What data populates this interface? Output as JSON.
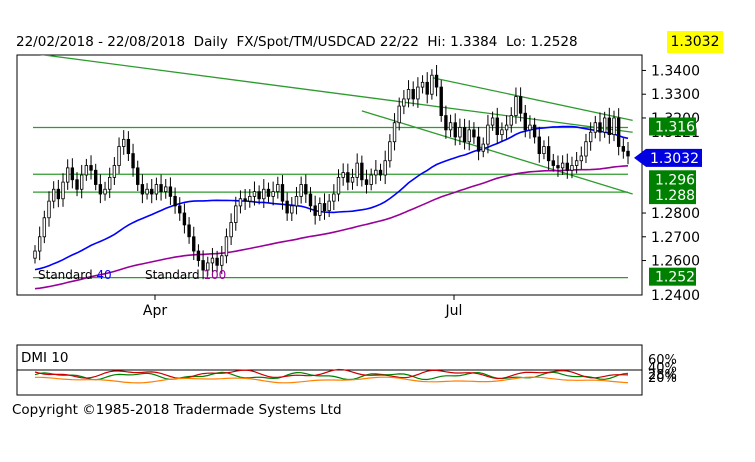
{
  "header": {
    "date_range": "22/02/2018 - 22/08/2018",
    "interval": "Daily",
    "instrument": "FX/Spot/TM/USDCAD 22/22",
    "hi": "Hi: 1.3384",
    "lo": "Lo: 1.2528",
    "last": "1.3032"
  },
  "copyright": "Copyright ©1985-2018 Tradermade Systems Ltd",
  "colors": {
    "candles": "#000000",
    "ma40": "#0000ff",
    "ma100": "#990099",
    "trendlines": "#2e9b2e",
    "levels": "#2e9b2e",
    "level_label_bg": "#008000",
    "price_marker": "#0000e0",
    "dmi_plus": "#008000",
    "dmi_minus": "#cc0000",
    "adx": "#ff8000"
  },
  "chart_data": [
    {
      "type": "candlestick",
      "instrument": "USDCAD",
      "interval": "Daily",
      "x_ticks": [
        "Apr",
        "Jul"
      ],
      "y_ticks": [
        "1.3400",
        "1.3300",
        "1.3200",
        "1.2800",
        "1.2700",
        "1.2600"
      ],
      "ylim": [
        1.2455,
        1.3465
      ],
      "last_price": 1.3032,
      "levels": [
        1.316,
        1.2963,
        1.2888,
        1.2528
      ],
      "level_labels": [
        "1.3160",
        "1.2963",
        "1.2888",
        "1.2528"
      ],
      "obscured_labels": [
        "1.3121",
        "1.2400"
      ],
      "legend": [
        {
          "label": "Standard",
          "period": "40",
          "color": "#0000ff"
        },
        {
          "label": "Standard",
          "period": "100",
          "color": "#990099"
        }
      ],
      "close": [
        1.264,
        1.27,
        1.278,
        1.285,
        1.29,
        1.286,
        1.293,
        1.299,
        1.294,
        1.29,
        1.296,
        1.3,
        1.298,
        1.292,
        1.288,
        1.29,
        1.295,
        1.3,
        1.308,
        1.311,
        1.305,
        1.299,
        1.292,
        1.288,
        1.29,
        1.288,
        1.292,
        1.289,
        1.291,
        1.287,
        1.283,
        1.28,
        1.275,
        1.27,
        1.264,
        1.26,
        1.256,
        1.259,
        1.261,
        1.258,
        1.262,
        1.27,
        1.276,
        1.283,
        1.286,
        1.285,
        1.287,
        1.289,
        1.286,
        1.29,
        1.287,
        1.289,
        1.292,
        1.285,
        1.28,
        1.283,
        1.287,
        1.292,
        1.288,
        1.283,
        1.279,
        1.284,
        1.281,
        1.285,
        1.288,
        1.295,
        1.297,
        1.293,
        1.295,
        1.301,
        1.294,
        1.292,
        1.296,
        1.298,
        1.296,
        1.302,
        1.31,
        1.318,
        1.325,
        1.328,
        1.332,
        1.328,
        1.333,
        1.335,
        1.33,
        1.338,
        1.333,
        1.321,
        1.315,
        1.318,
        1.312,
        1.316,
        1.31,
        1.315,
        1.312,
        1.306,
        1.309,
        1.317,
        1.32,
        1.313,
        1.315,
        1.317,
        1.321,
        1.329,
        1.322,
        1.315,
        1.317,
        1.312,
        1.305,
        1.308,
        1.302,
        1.3,
        1.299,
        1.301,
        1.298,
        1.3,
        1.302,
        1.304,
        1.31,
        1.314,
        1.318,
        1.314,
        1.32,
        1.313,
        1.32,
        1.308,
        1.306,
        1.304
      ]
    },
    {
      "type": "line",
      "title": "DMI 10",
      "y_ticks": [
        "60%",
        "40%",
        "28%",
        "20%"
      ],
      "ylim": [
        0,
        100
      ]
    }
  ]
}
